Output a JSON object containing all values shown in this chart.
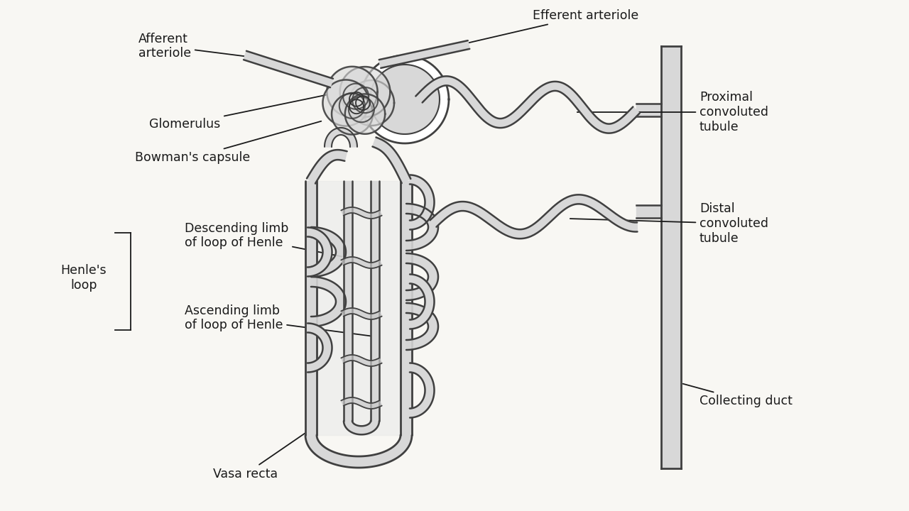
{
  "background_color": "#f8f7f3",
  "line_color": "#404040",
  "gray_fill": "#bbbbbb",
  "light_gray": "#d8d8d8",
  "figsize": [
    12.8,
    7.2
  ],
  "dpi": 100,
  "labels": {
    "afferent": "Afferent\narteriole",
    "efferent": "Efferent arteriole",
    "glomerulus": "Glomerulus",
    "bowman": "Bowman's capsule",
    "proximal": "Proximal\nconvoluted\ntubule",
    "distal": "Distal\nconvoluted\ntubule",
    "henle_loop": "Henle's\nloop",
    "descending": "Descending limb\nof loop of Henle",
    "ascending": "Ascending limb\nof loop of Henle",
    "vasa_recta": "Vasa recta",
    "collecting": "Collecting duct"
  }
}
